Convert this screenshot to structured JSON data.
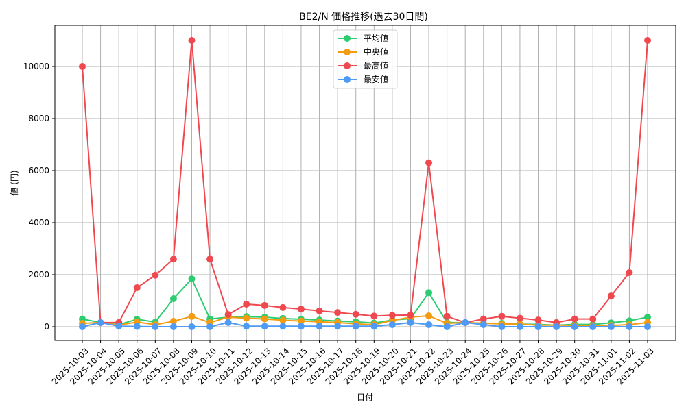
{
  "chart_data": {
    "type": "line",
    "title": "BE2/N 価格推移(過去30日間)",
    "xlabel": "日付",
    "ylabel": "値 (円)",
    "ylim": [
      -500,
      11500
    ],
    "yticks": [
      0,
      2000,
      4000,
      6000,
      8000,
      10000
    ],
    "grid": true,
    "legend_position": "upper center",
    "categories": [
      "2025-10-03",
      "2025-10-04",
      "2025-10-05",
      "2025-10-06",
      "2025-10-07",
      "2025-10-08",
      "2025-10-09",
      "2025-10-10",
      "2025-10-11",
      "2025-10-12",
      "2025-10-13",
      "2025-10-14",
      "2025-10-15",
      "2025-10-16",
      "2025-10-17",
      "2025-10-18",
      "2025-10-19",
      "2025-10-20",
      "2025-10-21",
      "2025-10-22",
      "2025-10-23",
      "2025-10-24",
      "2025-10-25",
      "2025-10-26",
      "2025-10-27",
      "2025-10-28",
      "2025-10-29",
      "2025-10-30",
      "2025-10-31",
      "2025-11-01",
      "2025-11-02",
      "2025-11-03"
    ],
    "series": [
      {
        "name": "平均値",
        "color": "#2ecc71",
        "values": [
          300,
          160,
          80,
          290,
          180,
          1080,
          1840,
          300,
          370,
          390,
          370,
          320,
          290,
          260,
          220,
          190,
          140,
          260,
          310,
          1310,
          160,
          160,
          130,
          130,
          100,
          90,
          60,
          90,
          90,
          150,
          230,
          370
        ]
      },
      {
        "name": "中央値",
        "color": "#f39c12",
        "values": [
          130,
          160,
          60,
          180,
          80,
          210,
          400,
          160,
          370,
          330,
          300,
          250,
          220,
          190,
          160,
          110,
          80,
          240,
          370,
          420,
          130,
          160,
          130,
          110,
          100,
          60,
          60,
          50,
          40,
          50,
          80,
          160
        ]
      },
      {
        "name": "最高値",
        "color": "#f0484f",
        "values": [
          10000,
          160,
          160,
          1500,
          1980,
          2600,
          11000,
          2600,
          470,
          870,
          820,
          740,
          680,
          610,
          550,
          480,
          410,
          440,
          450,
          6300,
          400,
          160,
          300,
          400,
          330,
          260,
          160,
          300,
          300,
          1180,
          2080,
          11000
        ]
      },
      {
        "name": "最安値",
        "color": "#4d9bf5",
        "values": [
          0,
          160,
          20,
          10,
          0,
          0,
          0,
          0,
          160,
          20,
          20,
          20,
          20,
          20,
          20,
          20,
          20,
          80,
          160,
          80,
          0,
          160,
          80,
          0,
          0,
          0,
          0,
          0,
          0,
          0,
          0,
          0
        ]
      }
    ]
  }
}
